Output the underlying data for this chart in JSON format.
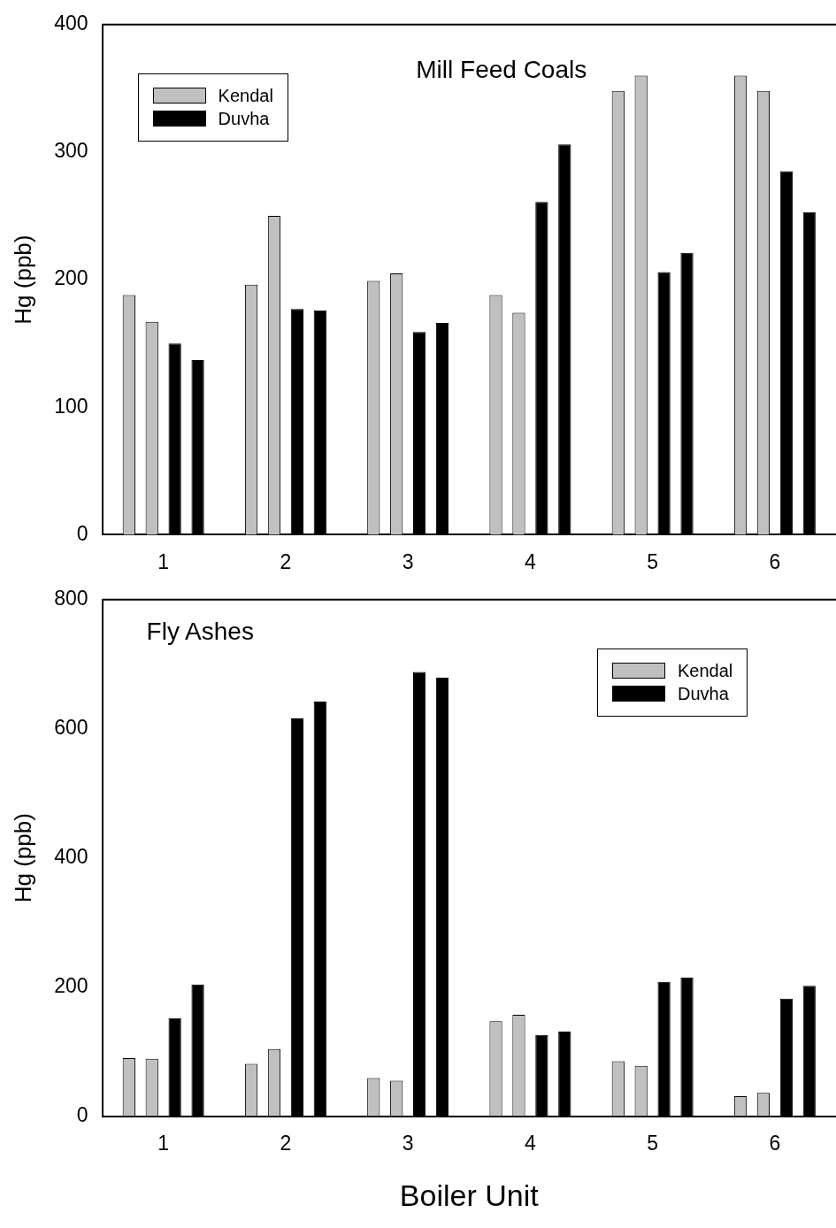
{
  "chart_data": [
    {
      "type": "bar",
      "title": "Mill Feed Coals",
      "ylabel": "Hg (ppb)",
      "categories": [
        "1",
        "2",
        "3",
        "4",
        "5",
        "6"
      ],
      "series": [
        {
          "name": "Kendal",
          "color": "#c0c0c0",
          "values": [
            188,
            196,
            199,
            188,
            348,
            360
          ]
        },
        {
          "color": "#c0c0c0",
          "values": [
            167,
            250,
            205,
            174,
            360,
            348
          ]
        },
        {
          "name": "Duvha",
          "color": "#000000",
          "values": [
            150,
            177,
            159,
            261,
            206,
            285
          ]
        },
        {
          "color": "#000000",
          "values": [
            137,
            176,
            166,
            306,
            221,
            253
          ]
        }
      ],
      "ylim": [
        0,
        400
      ],
      "yticks": [
        0,
        100,
        200,
        300,
        400
      ],
      "grid": false,
      "legend": "top left"
    },
    {
      "type": "bar",
      "title": "Fly Ashes",
      "xlabel": "Boiler Unit",
      "ylabel": "Hg (ppb)",
      "categories": [
        "1",
        "2",
        "3",
        "4",
        "5",
        "6"
      ],
      "series": [
        {
          "name": "Kendal",
          "color": "#c0c0c0",
          "values": [
            90,
            81,
            59,
            147,
            85,
            31
          ]
        },
        {
          "color": "#c0c0c0",
          "values": [
            89,
            104,
            55,
            157,
            78,
            36
          ]
        },
        {
          "name": "Duvha",
          "color": "#000000",
          "values": [
            152,
            616,
            688,
            126,
            208,
            182
          ]
        },
        {
          "color": "#000000",
          "values": [
            204,
            642,
            679,
            131,
            215,
            202
          ]
        }
      ],
      "ylim": [
        0,
        800
      ],
      "yticks": [
        0,
        200,
        400,
        600,
        800
      ],
      "grid": false,
      "legend": "top right"
    }
  ]
}
